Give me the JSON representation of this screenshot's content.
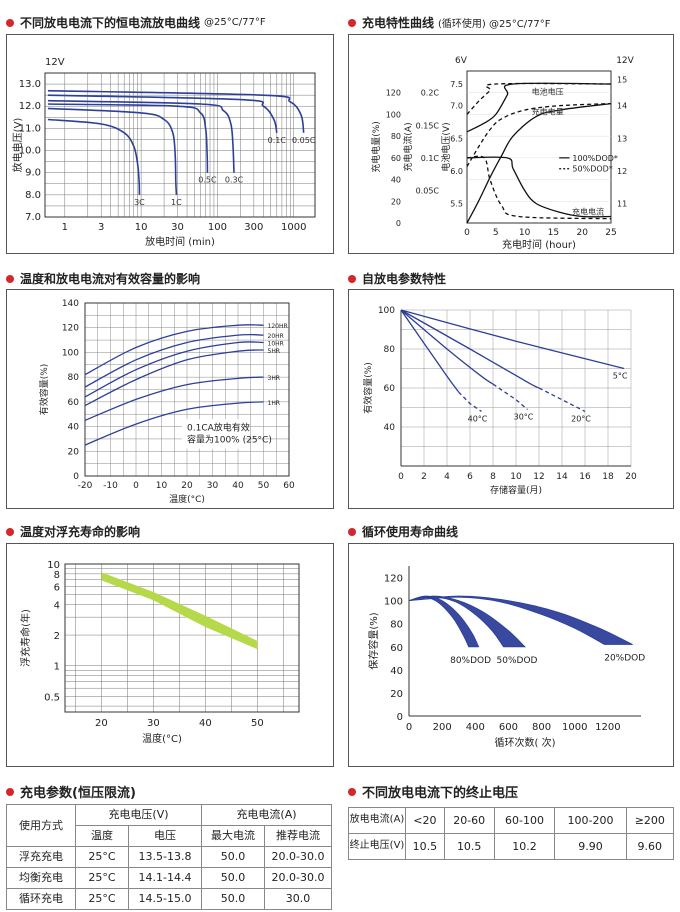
{
  "colors": {
    "accent_red": "#d4262c",
    "curve_blue": "#2d3f9a",
    "band_green": "#b6d94a",
    "grid": "#555555"
  },
  "sections": {
    "s1": {
      "title": "不同放电电流下的恒电流放电曲线",
      "sub": "@25°C/77°F"
    },
    "s2": {
      "title": "充电特性曲线",
      "sub": "(循环使用) @25°C/77°F"
    },
    "s3": {
      "title": "温度和放电电流对有效容量的影响"
    },
    "s4": {
      "title": "自放电参数特性"
    },
    "s5": {
      "title": "温度对浮充寿命的影响"
    },
    "s6": {
      "title": "循环使用寿命曲线"
    },
    "s7": {
      "title": "充电参数(恒压限流)"
    },
    "s8": {
      "title": "不同放电电流下的终止电压"
    }
  },
  "chart_data": [
    {
      "id": "discharge",
      "type": "line",
      "xlabel": "放电时间 (min)",
      "ylabel": "放电电压(V)",
      "x_scale": "log",
      "xlim": [
        0.55,
        1900
      ],
      "ylim": [
        7.0,
        13.5
      ],
      "xticks": [
        "1",
        "3",
        "10",
        "30",
        "100",
        "300",
        "1000"
      ],
      "yticks": [
        "7.0",
        "8.0",
        "9.0",
        "10.0",
        "11.0",
        "12.0",
        "13.0"
      ],
      "corner_label": "12V",
      "grid": true,
      "series": [
        {
          "name": "3C",
          "end_label": "3C",
          "points": [
            [
              0.6,
              11.4
            ],
            [
              3,
              11.2
            ],
            [
              6,
              10.8
            ],
            [
              8,
              10.2
            ],
            [
              9,
              9.4
            ],
            [
              9.4,
              8.6
            ],
            [
              9.5,
              8.0
            ]
          ]
        },
        {
          "name": "1C",
          "end_label": "1C",
          "points": [
            [
              0.6,
              11.9
            ],
            [
              10,
              11.7
            ],
            [
              20,
              11.4
            ],
            [
              26,
              10.8
            ],
            [
              28,
              9.8
            ],
            [
              28.5,
              8.6
            ],
            [
              29,
              8.0
            ]
          ]
        },
        {
          "name": "0.5C",
          "end_label": "0.5C",
          "points": [
            [
              0.6,
              12.1
            ],
            [
              30,
              12.0
            ],
            [
              60,
              11.7
            ],
            [
              70,
              11.0
            ],
            [
              73,
              10.0
            ],
            [
              74,
              9.0
            ]
          ]
        },
        {
          "name": "0.3C",
          "end_label": "0.3C",
          "points": [
            [
              0.6,
              12.25
            ],
            [
              60,
              12.1
            ],
            [
              120,
              11.8
            ],
            [
              150,
              11.2
            ],
            [
              160,
              10.2
            ],
            [
              165,
              9.0
            ]
          ]
        },
        {
          "name": "0.1C",
          "end_label": "0.1C",
          "points": [
            [
              0.6,
              12.5
            ],
            [
              200,
              12.3
            ],
            [
              400,
              12.0
            ],
            [
              550,
              11.4
            ],
            [
              600,
              10.8
            ]
          ]
        },
        {
          "name": "0.05C",
          "end_label": "0.05C",
          "points": [
            [
              0.6,
              12.7
            ],
            [
              400,
              12.5
            ],
            [
              900,
              12.2
            ],
            [
              1250,
              11.6
            ],
            [
              1350,
              10.8
            ]
          ]
        }
      ]
    },
    {
      "id": "charge",
      "type": "line",
      "xlabel": "充电时间 (hour)",
      "ylabel_left_outer": "充电电量(%)",
      "ylabel_left_inner": "充电电流(A)",
      "ylabel_left_third": "电池电压(V)",
      "corner_left": "6V",
      "corner_right": "12V",
      "xlim": [
        0,
        25
      ],
      "xticks": [
        "0",
        "5",
        "10",
        "15",
        "20",
        "25"
      ],
      "pct_ticks": [
        "0",
        "20",
        "40",
        "60",
        "80",
        "100",
        "120"
      ],
      "current_ticks": [
        "0.05C",
        "0.1C",
        "0.15C",
        "0.2C"
      ],
      "v6_ticks": [
        "5.5",
        "6.0",
        "6.5",
        "7.0",
        "7.5"
      ],
      "v12_ticks": [
        "11",
        "12",
        "13",
        "14",
        "15"
      ],
      "legend": [
        {
          "name": "100%DOD*",
          "style": "solid"
        },
        {
          "name": "50%DOD*",
          "style": "dashed"
        }
      ],
      "labels": {
        "voltage": "电池电压",
        "capacity": "充电电量",
        "current": "充电电流"
      },
      "series": [
        {
          "role": "voltage-100",
          "style": "solid",
          "points": [
            [
              0,
              84
            ],
            [
              3,
              92
            ],
            [
              5,
              100
            ],
            [
              7,
              118
            ],
            [
              8,
              128
            ],
            [
              25,
              128
            ]
          ]
        },
        {
          "role": "voltage-50",
          "style": "dashed",
          "points": [
            [
              0,
              100
            ],
            [
              2,
              112
            ],
            [
              4,
              122
            ],
            [
              5,
              128
            ],
            [
              25,
              128
            ]
          ]
        },
        {
          "role": "capacity-100",
          "style": "solid",
          "points": [
            [
              0,
              0
            ],
            [
              2,
              20
            ],
            [
              4,
              42
            ],
            [
              6,
              62
            ],
            [
              8,
              80
            ],
            [
              12,
              98
            ],
            [
              16,
              104
            ],
            [
              25,
              110
            ]
          ]
        },
        {
          "role": "capacity-50",
          "style": "dashed",
          "points": [
            [
              0,
              52
            ],
            [
              2,
              70
            ],
            [
              4,
              86
            ],
            [
              6,
              96
            ],
            [
              10,
              104
            ],
            [
              16,
              108
            ],
            [
              25,
              110
            ]
          ]
        },
        {
          "role": "current-100",
          "style": "solid",
          "points": [
            [
              0,
              60
            ],
            [
              7,
              60
            ],
            [
              8,
              50
            ],
            [
              10,
              30
            ],
            [
              12,
              18
            ],
            [
              16,
              10
            ],
            [
              20,
              6
            ],
            [
              25,
              6
            ]
          ]
        },
        {
          "role": "current-50",
          "style": "dashed",
          "points": [
            [
              0,
              60
            ],
            [
              3,
              60
            ],
            [
              4,
              40
            ],
            [
              6,
              16
            ],
            [
              9,
              6
            ],
            [
              25,
              4
            ]
          ]
        }
      ]
    },
    {
      "id": "temperature",
      "type": "line",
      "xlabel": "温度(°C)",
      "ylabel": "有效容量(%)",
      "xlim": [
        -20,
        60
      ],
      "ylim": [
        0,
        140
      ],
      "xticks": [
        "-20",
        "-10",
        "0",
        "10",
        "20",
        "30",
        "40",
        "50",
        "60"
      ],
      "yticks": [
        "0",
        "20",
        "40",
        "60",
        "80",
        "100",
        "120",
        "140"
      ],
      "note": [
        "0.1CA放电有效",
        "容量为100% (25°C)"
      ],
      "grid": true,
      "series": [
        {
          "name": "120HR",
          "points": [
            [
              -20,
              82
            ],
            [
              0,
              104
            ],
            [
              20,
              117
            ],
            [
              40,
              122
            ],
            [
              50,
              122
            ]
          ]
        },
        {
          "name": "20HR",
          "points": [
            [
              -20,
              72
            ],
            [
              0,
              94
            ],
            [
              20,
              108
            ],
            [
              40,
              114
            ],
            [
              50,
              114
            ]
          ]
        },
        {
          "name": "10HR",
          "points": [
            [
              -20,
              64
            ],
            [
              0,
              86
            ],
            [
              20,
              101
            ],
            [
              40,
              108
            ],
            [
              50,
              108
            ]
          ]
        },
        {
          "name": "5HR",
          "points": [
            [
              -20,
              57
            ],
            [
              0,
              78
            ],
            [
              20,
              94
            ],
            [
              40,
              101
            ],
            [
              50,
              102
            ]
          ]
        },
        {
          "name": "3HR",
          "points": [
            [
              -20,
              45
            ],
            [
              0,
              62
            ],
            [
              20,
              74
            ],
            [
              40,
              79
            ],
            [
              50,
              80
            ]
          ]
        },
        {
          "name": "1HR",
          "points": [
            [
              -20,
              25
            ],
            [
              0,
              42
            ],
            [
              20,
              54
            ],
            [
              40,
              59
            ],
            [
              50,
              60
            ]
          ]
        }
      ]
    },
    {
      "id": "self-discharge",
      "type": "line",
      "xlabel": "存储容量(月)",
      "ylabel": "有效容量(%)",
      "xlim": [
        0,
        20
      ],
      "ylim": [
        20,
        100
      ],
      "xticks": [
        "0",
        "2",
        "4",
        "6",
        "8",
        "10",
        "12",
        "14",
        "16",
        "18",
        "20"
      ],
      "yticks": [
        "40",
        "60",
        "80",
        "100"
      ],
      "grid": true,
      "series": [
        {
          "name": "40°C",
          "solid": [
            [
              0,
              100
            ],
            [
              2,
              83
            ],
            [
              4,
              66
            ],
            [
              5,
              58
            ]
          ],
          "dashed": [
            [
              5,
              58
            ],
            [
              6,
              52
            ],
            [
              7,
              48
            ]
          ]
        },
        {
          "name": "30°C",
          "solid": [
            [
              0,
              100
            ],
            [
              4,
              80
            ],
            [
              7,
              66
            ],
            [
              8,
              62
            ]
          ],
          "dashed": [
            [
              8,
              62
            ],
            [
              10,
              54
            ],
            [
              11,
              49
            ]
          ]
        },
        {
          "name": "20°C",
          "solid": [
            [
              0,
              100
            ],
            [
              6,
              80
            ],
            [
              11,
              63
            ],
            [
              12,
              60
            ]
          ],
          "dashed": [
            [
              12,
              60
            ],
            [
              14,
              54
            ],
            [
              16,
              48
            ]
          ]
        },
        {
          "name": "5°C",
          "solid": [
            [
              0,
              100
            ],
            [
              10,
              84
            ],
            [
              19.4,
              70
            ]
          ],
          "dashed": []
        }
      ]
    },
    {
      "id": "float-life",
      "type": "area",
      "xlabel": "温度(°C)",
      "ylabel": "浮充寿命(年)",
      "x_scale": "linear",
      "y_scale": "log",
      "xlim": [
        13,
        58
      ],
      "ylim": [
        0.35,
        10
      ],
      "xticks": [
        "20",
        "30",
        "40",
        "50"
      ],
      "yticks": [
        "0.5",
        "1",
        "2",
        "4",
        "6",
        "8",
        "10"
      ],
      "grid": true,
      "band": {
        "upper": [
          [
            20,
            8.3
          ],
          [
            30,
            5.3
          ],
          [
            40,
            3.1
          ],
          [
            50,
            1.75
          ]
        ],
        "lower": [
          [
            20,
            6.9
          ],
          [
            30,
            4.4
          ],
          [
            40,
            2.4
          ],
          [
            50,
            1.45
          ]
        ]
      }
    },
    {
      "id": "cycle-life",
      "type": "area",
      "xlabel": "循环次数( 次)",
      "ylabel": "保存容量(%)",
      "xlim": [
        0,
        1400
      ],
      "ylim": [
        0,
        130
      ],
      "xticks": [
        "0",
        "200",
        "400",
        "600",
        "800",
        "1000",
        "1200"
      ],
      "yticks": [
        "0",
        "20",
        "40",
        "60",
        "80",
        "100",
        "120"
      ],
      "grid": false,
      "bands": [
        {
          "name": "80%DOD",
          "outer": [
            [
              0,
              100
            ],
            [
              100,
              104
            ],
            [
              200,
              100
            ],
            [
              300,
              88
            ],
            [
              380,
              72
            ],
            [
              420,
              60
            ]
          ],
          "inner": [
            [
              0,
              100
            ],
            [
              100,
              103
            ],
            [
              180,
              98
            ],
            [
              260,
              86
            ],
            [
              320,
              72
            ],
            [
              360,
              60
            ]
          ]
        },
        {
          "name": "50%DOD",
          "outer": [
            [
              0,
              100
            ],
            [
              150,
              104
            ],
            [
              300,
              100
            ],
            [
              450,
              90
            ],
            [
              600,
              74
            ],
            [
              700,
              60
            ]
          ],
          "inner": [
            [
              0,
              100
            ],
            [
              150,
              103
            ],
            [
              280,
              99
            ],
            [
              400,
              88
            ],
            [
              500,
              74
            ],
            [
              570,
              60
            ]
          ]
        },
        {
          "name": "20%DOD",
          "outer": [
            [
              0,
              100
            ],
            [
              300,
              104
            ],
            [
              600,
              100
            ],
            [
              900,
              90
            ],
            [
              1150,
              76
            ],
            [
              1350,
              62
            ]
          ],
          "inner": [
            [
              0,
              100
            ],
            [
              300,
              103
            ],
            [
              550,
              99
            ],
            [
              800,
              88
            ],
            [
              1000,
              76
            ],
            [
              1180,
              62
            ]
          ]
        }
      ]
    }
  ],
  "table_charge": {
    "h_usage": "使用方式",
    "h_voltage": "充电电压(V)",
    "h_current": "充电电流(A)",
    "h_temp": "温度",
    "h_volt": "电压",
    "h_max": "最大电流",
    "h_rec": "推荐电流",
    "rows": [
      {
        "mode": "浮充充电",
        "temp": "25°C",
        "volt": "13.5-13.8",
        "max": "50.0",
        "rec": "20.0-30.0"
      },
      {
        "mode": "均衡充电",
        "temp": "25°C",
        "volt": "14.1-14.4",
        "max": "50.0",
        "rec": "20.0-30.0"
      },
      {
        "mode": "循环充电",
        "temp": "25°C",
        "volt": "14.5-15.0",
        "max": "50.0",
        "rec": "30.0"
      }
    ]
  },
  "table_cutoff": {
    "h_current": "放电电流(A)",
    "h_voltage": "终止电压(V)",
    "currents": [
      "<20",
      "20-60",
      "60-100",
      "100-200",
      "≥200"
    ],
    "voltages": [
      "10.5",
      "10.5",
      "10.2",
      "9.90",
      "9.60"
    ]
  }
}
